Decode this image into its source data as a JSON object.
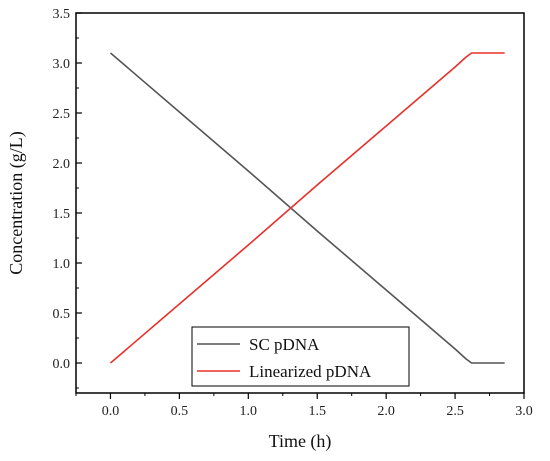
{
  "chart_data": {
    "type": "line",
    "title": "",
    "xlabel": "Time (h)",
    "ylabel": "Concentration (g/L)",
    "xlim": [
      -0.25,
      3.0
    ],
    "ylim": [
      -0.3,
      3.5
    ],
    "x_ticks": [
      "0.0",
      "0.5",
      "1.0",
      "1.5",
      "2.0",
      "2.5",
      "3.0"
    ],
    "y_ticks": [
      "0.0",
      "0.5",
      "1.0",
      "1.5",
      "2.0",
      "2.5",
      "3.0",
      "3.5"
    ],
    "grid": false,
    "legend_position": "bottom-center",
    "series": [
      {
        "name": "SC pDNA",
        "color": "#555555",
        "x": [
          0.0,
          0.5,
          1.0,
          1.5,
          2.0,
          2.5,
          2.58,
          2.62,
          2.65,
          2.86
        ],
        "y": [
          3.1,
          2.51,
          1.92,
          1.32,
          0.73,
          0.14,
          0.04,
          0.0,
          0.0,
          0.0
        ]
      },
      {
        "name": "Linearized pDNA",
        "color": "#e8302a",
        "x": [
          0.0,
          0.5,
          1.0,
          1.5,
          2.0,
          2.5,
          2.58,
          2.62,
          2.65,
          2.86
        ],
        "y": [
          0.0,
          0.59,
          1.18,
          1.78,
          2.37,
          2.96,
          3.06,
          3.1,
          3.1,
          3.1
        ]
      }
    ]
  }
}
